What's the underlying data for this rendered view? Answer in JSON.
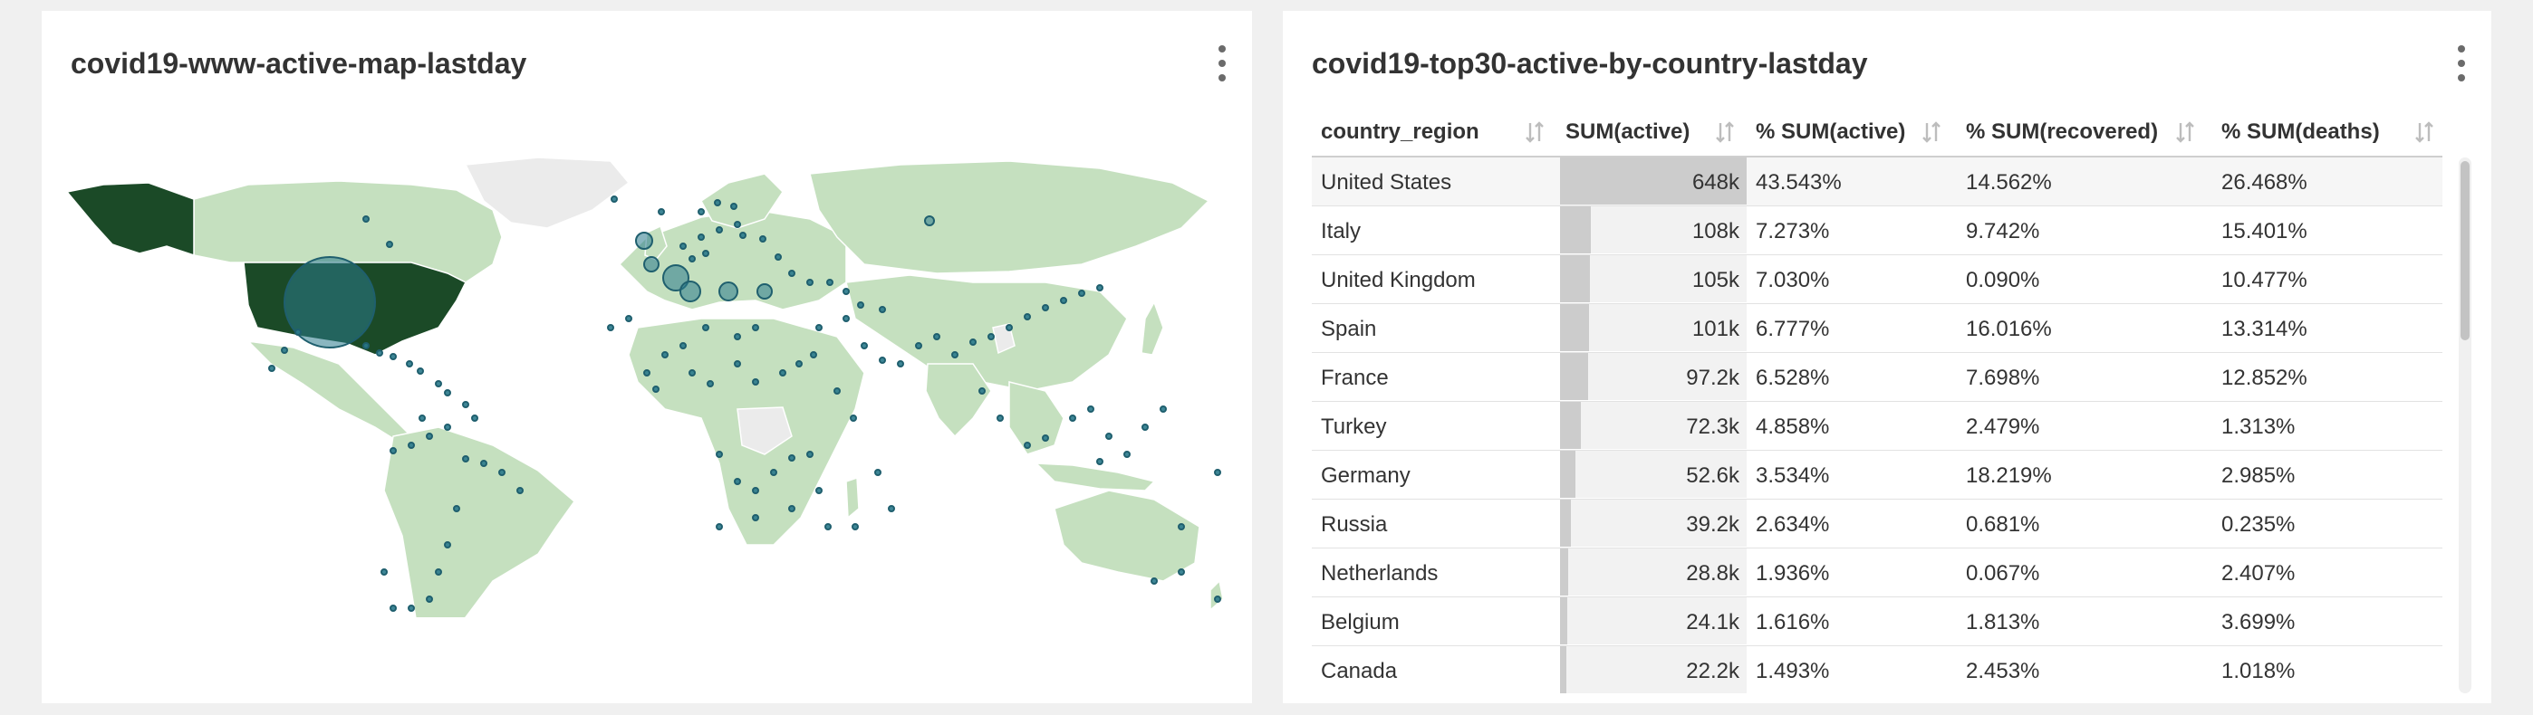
{
  "map_panel": {
    "title": "covid19-www-active-map-lastday",
    "colors": {
      "land": "#c5e0bf",
      "land_border": "#ffffff",
      "no_data": "#ebebeb",
      "highlight": "#1b4a27",
      "bubble_fill": "#2a7a8c",
      "bubble_stroke": "#2a6a7a"
    }
  },
  "table_panel": {
    "title": "covid19-top30-active-by-country-lastday",
    "columns": [
      "country_region",
      "SUM(active)",
      "% SUM(active)",
      "% SUM(recovered)",
      "% SUM(deaths)"
    ],
    "rows": [
      {
        "country": "United States",
        "active": "648k",
        "active_value": 648,
        "pct_active": "43.543%",
        "pct_recovered": "14.562%",
        "pct_deaths": "26.468%"
      },
      {
        "country": "Italy",
        "active": "108k",
        "active_value": 108,
        "pct_active": "7.273%",
        "pct_recovered": "9.742%",
        "pct_deaths": "15.401%"
      },
      {
        "country": "United Kingdom",
        "active": "105k",
        "active_value": 105,
        "pct_active": "7.030%",
        "pct_recovered": "0.090%",
        "pct_deaths": "10.477%"
      },
      {
        "country": "Spain",
        "active": "101k",
        "active_value": 101,
        "pct_active": "6.777%",
        "pct_recovered": "16.016%",
        "pct_deaths": "13.314%"
      },
      {
        "country": "France",
        "active": "97.2k",
        "active_value": 97.2,
        "pct_active": "6.528%",
        "pct_recovered": "7.698%",
        "pct_deaths": "12.852%"
      },
      {
        "country": "Turkey",
        "active": "72.3k",
        "active_value": 72.3,
        "pct_active": "4.858%",
        "pct_recovered": "2.479%",
        "pct_deaths": "1.313%"
      },
      {
        "country": "Germany",
        "active": "52.6k",
        "active_value": 52.6,
        "pct_active": "3.534%",
        "pct_recovered": "18.219%",
        "pct_deaths": "2.985%"
      },
      {
        "country": "Russia",
        "active": "39.2k",
        "active_value": 39.2,
        "pct_active": "2.634%",
        "pct_recovered": "0.681%",
        "pct_deaths": "0.235%"
      },
      {
        "country": "Netherlands",
        "active": "28.8k",
        "active_value": 28.8,
        "pct_active": "1.936%",
        "pct_recovered": "0.067%",
        "pct_deaths": "2.407%"
      },
      {
        "country": "Belgium",
        "active": "24.1k",
        "active_value": 24.1,
        "pct_active": "1.616%",
        "pct_recovered": "1.813%",
        "pct_deaths": "3.699%"
      },
      {
        "country": "Canada",
        "active": "22.2k",
        "active_value": 22.2,
        "pct_active": "1.493%",
        "pct_recovered": "2.453%",
        "pct_deaths": "1.018%"
      }
    ],
    "colors": {
      "bar": "#cccccc",
      "bar_track": "#f2f2f2",
      "selected_row": "#f6f6f6"
    }
  }
}
